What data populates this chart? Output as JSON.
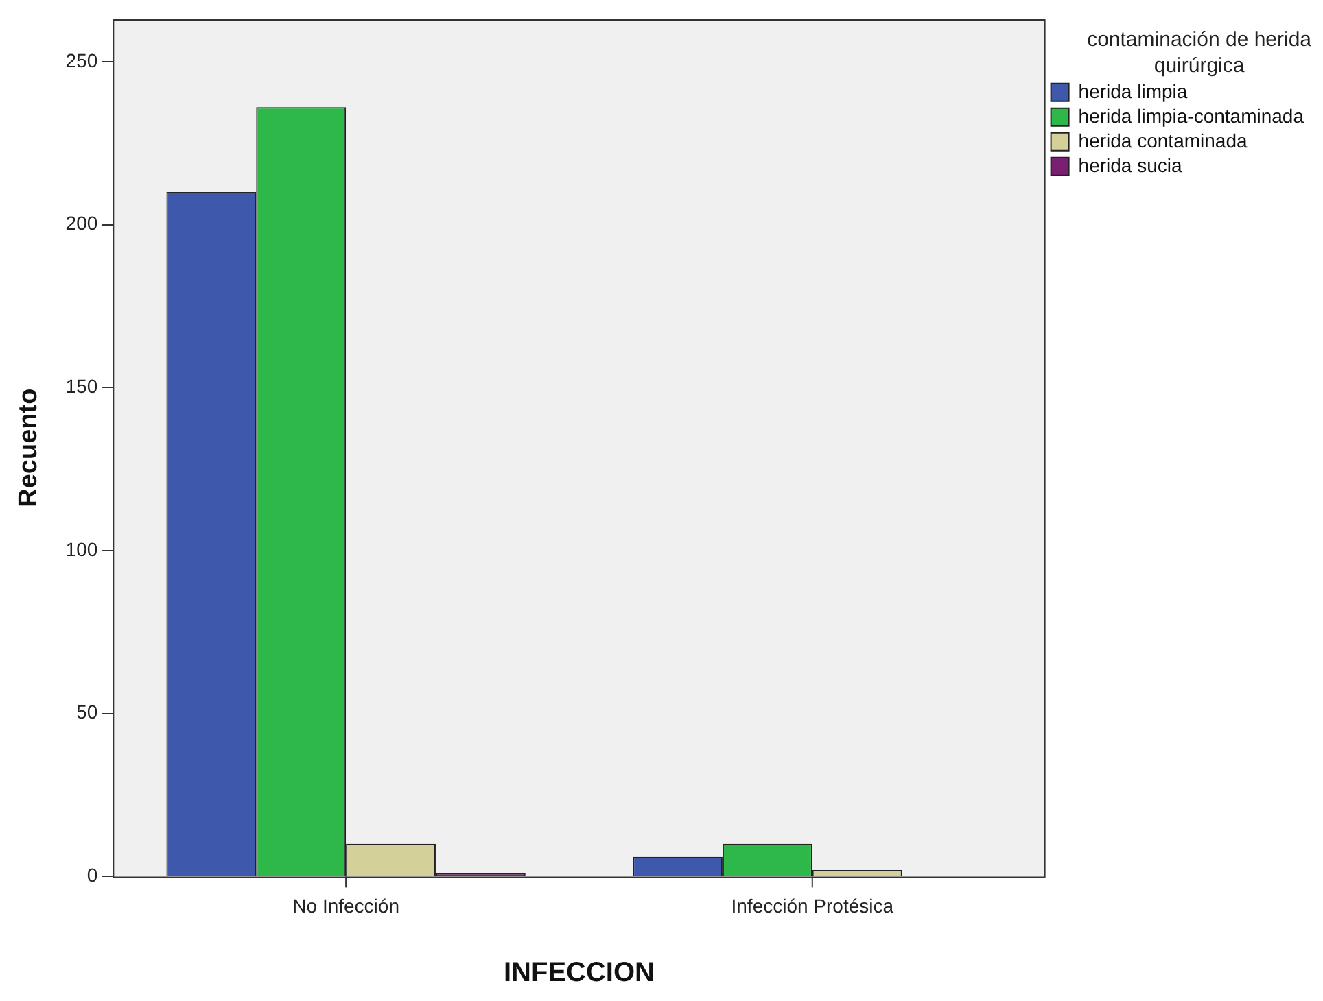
{
  "chart_data": {
    "type": "bar",
    "xlabel": "INFECCION",
    "ylabel": "Recuento",
    "legend_title": "contaminación de herida quirúrgica",
    "categories": [
      "No Infección",
      "Infección Protésica"
    ],
    "series": [
      {
        "name": "herida limpia",
        "color": "#3e58ac",
        "values": [
          210,
          6
        ]
      },
      {
        "name": "herida limpia-contaminada",
        "color": "#2fb84a",
        "values": [
          236,
          10
        ]
      },
      {
        "name": "herida contaminada",
        "color": "#d4d09a",
        "values": [
          10,
          2
        ]
      },
      {
        "name": "herida sucia",
        "color": "#7a1f72",
        "values": [
          1,
          0
        ]
      }
    ],
    "ylim": [
      0,
      263
    ],
    "yticks": [
      0,
      50,
      100,
      150,
      200,
      250
    ],
    "grid": false,
    "legend": "top right"
  }
}
